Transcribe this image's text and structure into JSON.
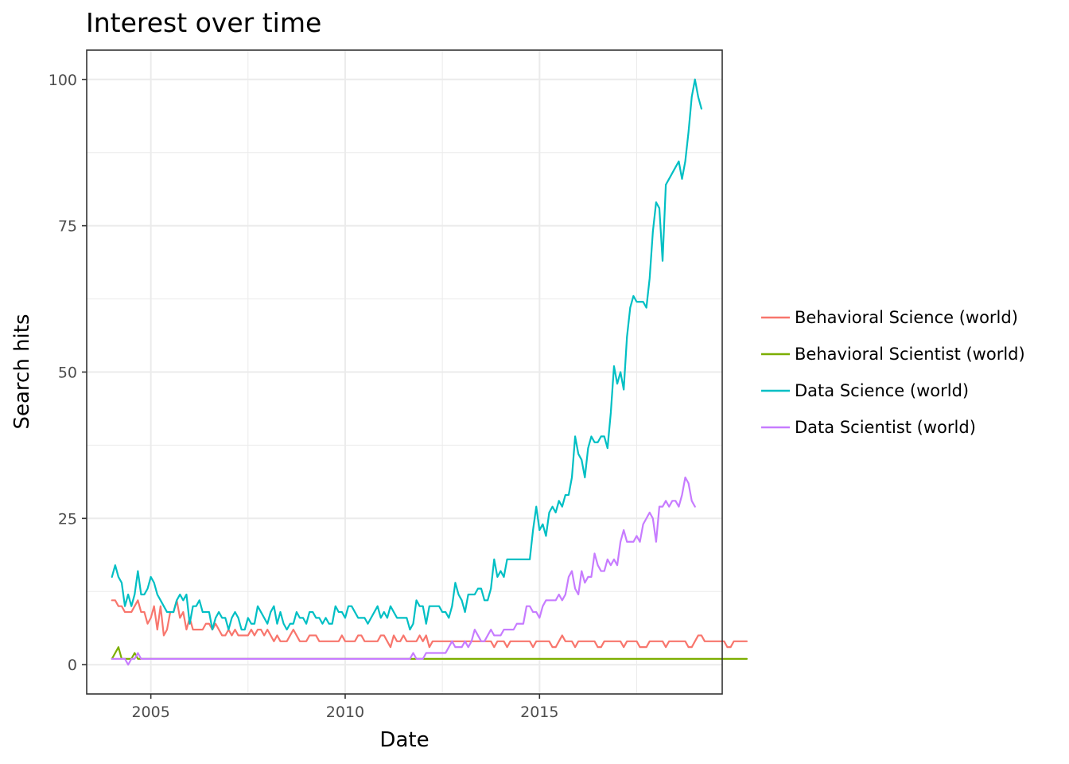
{
  "chart_data": {
    "type": "line",
    "title": "Interest over time",
    "xlabel": "Date",
    "ylabel": "Search hits",
    "x_ticks": [
      {
        "value": 2005,
        "label": "2005"
      },
      {
        "value": 2010,
        "label": "2010"
      },
      {
        "value": 2015,
        "label": "2015"
      }
    ],
    "y_ticks": [
      {
        "value": 0,
        "label": "0"
      },
      {
        "value": 25,
        "label": "25"
      },
      {
        "value": 50,
        "label": "50"
      },
      {
        "value": 75,
        "label": "75"
      },
      {
        "value": 100,
        "label": "100"
      }
    ],
    "xlim": [
      2003.35,
      2019.7
    ],
    "ylim": [
      -5,
      105
    ],
    "grid": true,
    "legend_position": "right",
    "x_start": 2004.0,
    "x_step": 0.08333,
    "series": [
      {
        "name": " Behavioral Science (world)",
        "color": "#F8766D",
        "values": [
          11,
          11,
          10,
          10,
          9,
          9,
          9,
          10,
          11,
          9,
          9,
          7,
          8,
          10,
          6,
          10,
          5,
          6,
          9,
          9,
          11,
          8,
          9,
          6,
          8,
          6,
          6,
          6,
          6,
          7,
          7,
          6,
          7,
          6,
          5,
          5,
          6,
          5,
          6,
          5,
          5,
          5,
          5,
          6,
          5,
          6,
          6,
          5,
          6,
          5,
          4,
          5,
          4,
          4,
          4,
          5,
          6,
          5,
          4,
          4,
          4,
          5,
          5,
          5,
          4,
          4,
          4,
          4,
          4,
          4,
          4,
          5,
          4,
          4,
          4,
          4,
          5,
          5,
          4,
          4,
          4,
          4,
          4,
          5,
          5,
          4,
          3,
          5,
          4,
          4,
          5,
          4,
          4,
          4,
          4,
          5,
          4,
          5,
          3,
          4,
          4,
          4,
          4,
          4,
          4,
          4,
          4,
          4,
          4,
          4,
          4,
          4,
          4,
          4,
          4,
          4,
          4,
          4,
          3,
          4,
          4,
          4,
          3,
          4,
          4,
          4,
          4,
          4,
          4,
          4,
          3,
          4,
          4,
          4,
          4,
          4,
          3,
          3,
          4,
          5,
          4,
          4,
          4,
          3,
          4,
          4,
          4,
          4,
          4,
          4,
          3,
          3,
          4,
          4,
          4,
          4,
          4,
          4,
          3,
          4,
          4,
          4,
          4,
          3,
          3,
          3,
          4,
          4,
          4,
          4,
          4,
          3,
          4,
          4,
          4,
          4,
          4,
          4,
          3,
          3,
          4,
          5,
          5,
          4,
          4,
          4,
          4,
          4,
          4,
          4,
          3,
          3,
          4,
          4,
          4,
          4,
          4
        ]
      },
      {
        "name": "Behavioral Scientist (world)",
        "color": "#7CAE00",
        "values": [
          1,
          2,
          3,
          1,
          1,
          1,
          1,
          2,
          1,
          1,
          1,
          1,
          1,
          1,
          1,
          1,
          1,
          1,
          1,
          1,
          1,
          1,
          1,
          1,
          1,
          1,
          1,
          1,
          1,
          1,
          1,
          1,
          1,
          1,
          1,
          1,
          1,
          1,
          1,
          1,
          1,
          1,
          1,
          1,
          1,
          1,
          1,
          1,
          1,
          1,
          1,
          1,
          1,
          1,
          1,
          1,
          1,
          1,
          1,
          1,
          1,
          1,
          1,
          1,
          1,
          1,
          1,
          1,
          1,
          1,
          1,
          1,
          1,
          1,
          1,
          1,
          1,
          1,
          1,
          1,
          1,
          1,
          1,
          1,
          1,
          1,
          1,
          1,
          1,
          1,
          1,
          1,
          1,
          1,
          1,
          1,
          1,
          1,
          1,
          1,
          1,
          1,
          1,
          1,
          1,
          1,
          1,
          1,
          1,
          1,
          1,
          1,
          1,
          1,
          1,
          1,
          1,
          1,
          1,
          1,
          1,
          1,
          1,
          1,
          1,
          1,
          1,
          1,
          1,
          1,
          1,
          1,
          1,
          1,
          1,
          1,
          1,
          1,
          1,
          1,
          1,
          1,
          1,
          1,
          1,
          1,
          1,
          1,
          1,
          1,
          1,
          1,
          1,
          1,
          1,
          1,
          1,
          1,
          1,
          1,
          1,
          1,
          1,
          1,
          1,
          1,
          1,
          1,
          1,
          1,
          1,
          1,
          1,
          1,
          1,
          1,
          1,
          1,
          1,
          1,
          1,
          1,
          1,
          1,
          1,
          1,
          1,
          1,
          1,
          1,
          1,
          1,
          1,
          1,
          1,
          1,
          1
        ]
      },
      {
        "name": "Data Science (world)",
        "color": "#00BFC4",
        "values": [
          15,
          17,
          15,
          14,
          10,
          12,
          10,
          12,
          16,
          12,
          12,
          13,
          15,
          14,
          12,
          11,
          10,
          9,
          9,
          9,
          11,
          12,
          11,
          12,
          7,
          10,
          10,
          11,
          9,
          9,
          9,
          6,
          8,
          9,
          8,
          8,
          6,
          8,
          9,
          8,
          6,
          6,
          8,
          7,
          7,
          10,
          9,
          8,
          7,
          9,
          10,
          7,
          9,
          7,
          6,
          7,
          7,
          9,
          8,
          8,
          7,
          9,
          9,
          8,
          8,
          7,
          8,
          7,
          7,
          10,
          9,
          9,
          8,
          10,
          10,
          9,
          8,
          8,
          8,
          7,
          8,
          9,
          10,
          8,
          9,
          8,
          10,
          9,
          8,
          8,
          8,
          8,
          6,
          7,
          11,
          10,
          10,
          7,
          10,
          10,
          10,
          10,
          9,
          9,
          8,
          10,
          14,
          12,
          11,
          9,
          12,
          12,
          12,
          13,
          13,
          11,
          11,
          13,
          18,
          15,
          16,
          15,
          18,
          18,
          18,
          18,
          18,
          18,
          18,
          18,
          23,
          27,
          23,
          24,
          22,
          26,
          27,
          26,
          28,
          27,
          29,
          29,
          32,
          39,
          36,
          35,
          32,
          37,
          39,
          38,
          38,
          39,
          39,
          37,
          43,
          51,
          48,
          50,
          47,
          56,
          61,
          63,
          62,
          62,
          62,
          61,
          66,
          74,
          79,
          78,
          69,
          82,
          83,
          84,
          85,
          86,
          83,
          86,
          91,
          97,
          100,
          97,
          95
        ]
      },
      {
        "name": "Data Scientist (world)",
        "color": "#C77CFF",
        "values": [
          1,
          1,
          1,
          1,
          1,
          0,
          1,
          1,
          2,
          1,
          1,
          1,
          1,
          1,
          1,
          1,
          1,
          1,
          1,
          1,
          1,
          1,
          1,
          1,
          1,
          1,
          1,
          1,
          1,
          1,
          1,
          1,
          1,
          1,
          1,
          1,
          1,
          1,
          1,
          1,
          1,
          1,
          1,
          1,
          1,
          1,
          1,
          1,
          1,
          1,
          1,
          1,
          1,
          1,
          1,
          1,
          1,
          1,
          1,
          1,
          1,
          1,
          1,
          1,
          1,
          1,
          1,
          1,
          1,
          1,
          1,
          1,
          1,
          1,
          1,
          1,
          1,
          1,
          1,
          1,
          1,
          1,
          1,
          1,
          1,
          1,
          1,
          1,
          1,
          1,
          1,
          1,
          1,
          2,
          1,
          1,
          1,
          2,
          2,
          2,
          2,
          2,
          2,
          2,
          3,
          4,
          3,
          3,
          3,
          4,
          3,
          4,
          6,
          5,
          4,
          4,
          5,
          6,
          5,
          5,
          5,
          6,
          6,
          6,
          6,
          7,
          7,
          7,
          10,
          10,
          9,
          9,
          8,
          10,
          11,
          11,
          11,
          11,
          12,
          11,
          12,
          15,
          16,
          13,
          12,
          16,
          14,
          15,
          15,
          19,
          17,
          16,
          16,
          18,
          17,
          18,
          17,
          21,
          23,
          21,
          21,
          21,
          22,
          21,
          24,
          25,
          26,
          25,
          21,
          27,
          27,
          28,
          27,
          28,
          28,
          27,
          29,
          32,
          31,
          28,
          27
        ]
      }
    ]
  }
}
